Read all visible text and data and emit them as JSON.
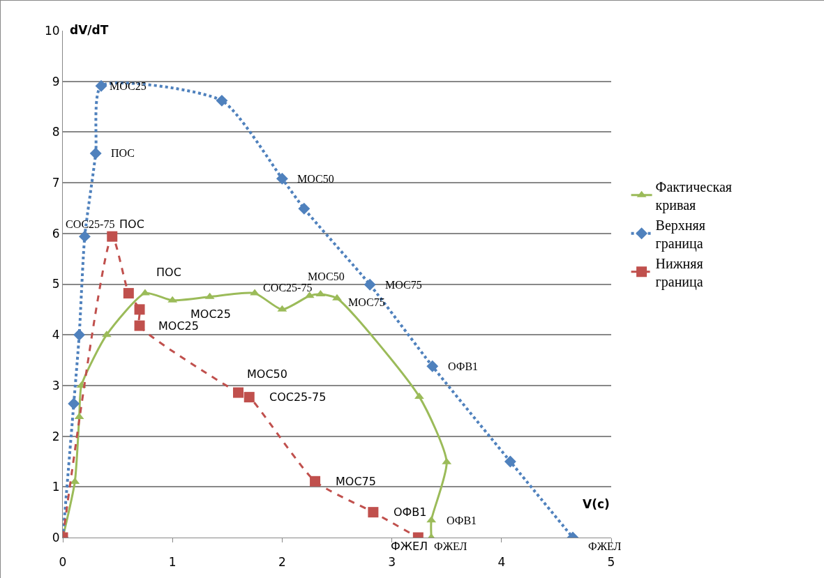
{
  "chart_data": {
    "type": "line",
    "xlabel": "V(c)",
    "ylabel": "dV/dT",
    "xlim": [
      0,
      5
    ],
    "xticks": [
      0,
      1,
      2,
      3,
      4,
      5
    ],
    "ylim": [
      0,
      10
    ],
    "yticks": [
      0,
      1,
      2,
      3,
      4,
      5,
      6,
      7,
      8,
      9,
      10
    ],
    "grid": "y",
    "legend": "right",
    "series": [
      {
        "name": "Фактическая кривая",
        "color": "#9bbb59",
        "marker": "triangle",
        "line_style": "solid",
        "x": [
          0,
          0.11,
          0.15,
          0.17,
          0.4,
          0.75,
          1.0,
          1.34,
          1.75,
          2.0,
          2.25,
          2.35,
          2.5,
          3.25,
          3.5,
          3.36,
          3.36
        ],
        "values": [
          0,
          1.1,
          2.38,
          3.0,
          4.0,
          4.82,
          4.68,
          4.75,
          4.82,
          4.5,
          4.77,
          4.8,
          4.72,
          2.78,
          1.49,
          0.34,
          0
        ]
      },
      {
        "name": "Верхняя граница",
        "color": "#4f81bd",
        "marker": "diamond",
        "line_style": "dotted",
        "x": [
          0,
          0.1,
          0.15,
          0.2,
          0.3,
          0.35,
          1.45,
          2.0,
          2.2,
          2.8,
          3.37,
          4.08,
          4.65
        ],
        "values": [
          0,
          2.64,
          4.0,
          5.94,
          7.58,
          8.91,
          8.62,
          7.08,
          6.49,
          4.99,
          3.38,
          1.5,
          0
        ]
      },
      {
        "name": "Нижняя граница",
        "color": "#c0504d",
        "marker": "square",
        "line_style": "dashed",
        "x": [
          0,
          0.45,
          0.6,
          0.7,
          0.7,
          1.6,
          1.7,
          2.3,
          2.83,
          3.24
        ],
        "values": [
          0,
          5.94,
          4.82,
          4.5,
          4.18,
          2.86,
          2.77,
          1.11,
          0.5,
          0
        ]
      }
    ],
    "annotations": [
      {
        "text": "МОС25",
        "x": 0.35,
        "y": 8.91
      },
      {
        "text": "ПОС",
        "x": 0.3,
        "y": 7.58
      },
      {
        "text": "СОС25-75",
        "x": 0.2,
        "y": 5.94
      },
      {
        "text": "МОС50",
        "x": 2.0,
        "y": 7.08
      },
      {
        "text": "МОС75",
        "x": 2.8,
        "y": 4.99
      },
      {
        "text": "ОФВ1",
        "x": 3.37,
        "y": 3.38
      },
      {
        "text": "ФЖЕЛ",
        "x": 4.65,
        "y": 0
      },
      {
        "text": "ПОС",
        "x": 0.45,
        "y": 5.94
      },
      {
        "text": "ПОС",
        "x": 0.6,
        "y": 4.82
      },
      {
        "text": "МОС25",
        "x": 1.0,
        "y": 4.68
      },
      {
        "text": "МОС25",
        "x": 0.7,
        "y": 4.18
      },
      {
        "text": "МОС50",
        "x": 1.6,
        "y": 2.86
      },
      {
        "text": "СОС25-75",
        "x": 1.7,
        "y": 2.77
      },
      {
        "text": "МОС75",
        "x": 2.3,
        "y": 1.11
      },
      {
        "text": "ОФВ1",
        "x": 2.83,
        "y": 0.5
      },
      {
        "text": "ФЖЕЛ",
        "x": 3.24,
        "y": 0
      },
      {
        "text": "СОС25-75",
        "x": 1.75,
        "y": 4.82
      },
      {
        "text": "МОС50",
        "x": 2.35,
        "y": 4.8
      },
      {
        "text": "МОС75",
        "x": 2.5,
        "y": 4.72
      },
      {
        "text": "ОФВ1",
        "x": 3.36,
        "y": 0.34
      },
      {
        "text": "ФЖЕЛ",
        "x": 3.36,
        "y": 0
      }
    ]
  }
}
